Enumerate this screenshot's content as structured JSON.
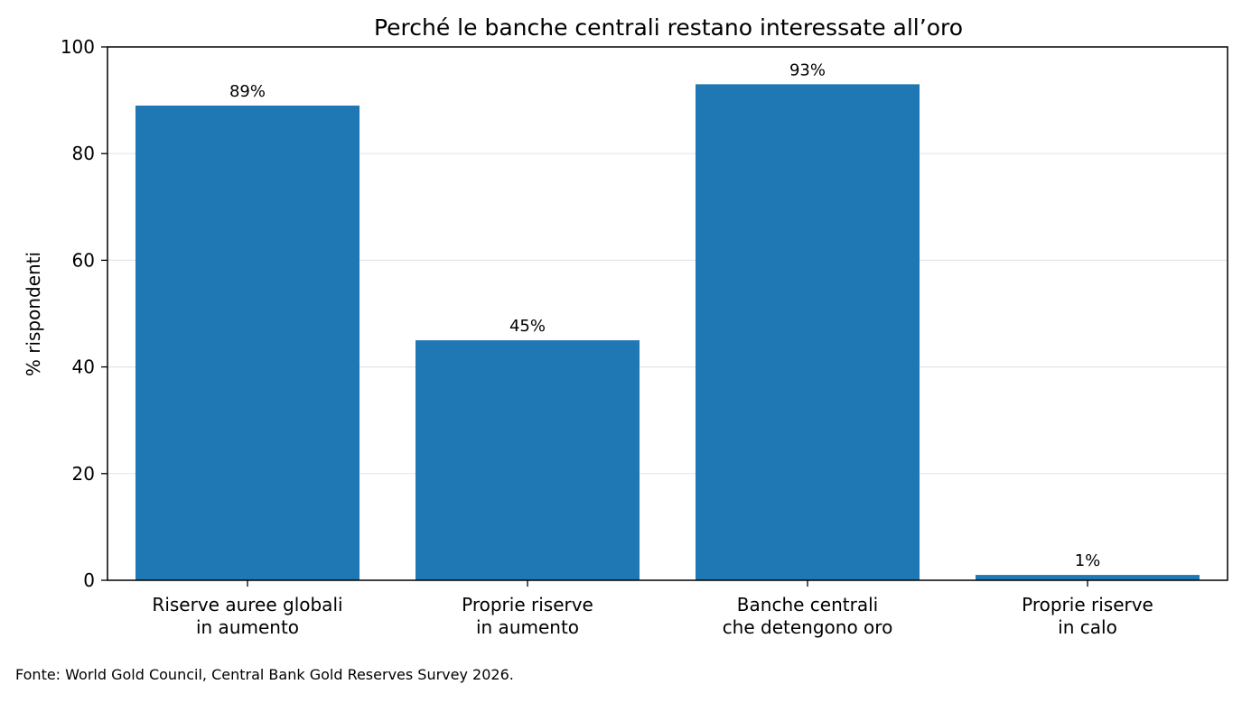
{
  "chart_data": {
    "type": "bar",
    "title": "Perché le banche centrali restano interessate all’oro",
    "xlabel": "",
    "ylabel": "% rispondenti",
    "categories": [
      [
        "Riserve auree globali",
        "in aumento"
      ],
      [
        "Proprie riserve",
        "in aumento"
      ],
      [
        "Banche centrali",
        "che detengono oro"
      ],
      [
        "Proprie riserve",
        "in calo"
      ]
    ],
    "values": [
      89,
      45,
      93,
      1
    ],
    "data_labels": [
      "89%",
      "45%",
      "93%",
      "1%"
    ],
    "ylim": [
      0,
      100
    ],
    "yticks": [
      0,
      20,
      40,
      60,
      80,
      100
    ],
    "grid": "horizontal",
    "bar_color": "#1f77b4"
  },
  "footnote": "Fonte: World Gold Council, Central Bank Gold Reserves Survey 2026."
}
